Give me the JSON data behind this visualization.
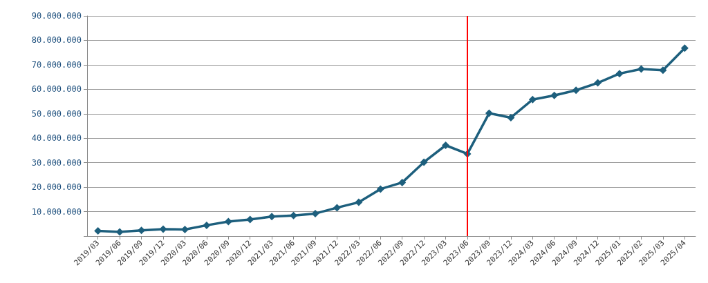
{
  "chart_data": {
    "type": "line",
    "categories": [
      "2019/03",
      "2019/06",
      "2019/09",
      "2019/12",
      "2020/03",
      "2020/06",
      "2020/09",
      "2020/12",
      "2021/03",
      "2021/06",
      "2021/09",
      "2021/12",
      "2022/03",
      "2022/06",
      "2022/09",
      "2022/12",
      "2023/03",
      "2023/06",
      "2023/09",
      "2023/12",
      "2024/03",
      "2024/06",
      "2024/09",
      "2024/12",
      "2025/01",
      "2025/02",
      "2025/03",
      "2025/04"
    ],
    "series": [
      {
        "color": "#1d5f7d",
        "values": [
          2100000,
          1700000,
          2300000,
          2800000,
          2700000,
          4400000,
          5900000,
          6800000,
          8000000,
          8400000,
          9200000,
          11600000,
          13800000,
          19200000,
          21900000,
          30200000,
          37100000,
          33600000,
          50200000,
          48400000,
          55800000,
          57500000,
          59600000,
          62600000,
          66400000,
          68300000,
          67800000,
          76800000
        ]
      }
    ],
    "ylim": [
      0,
      90000000
    ],
    "yticks": [
      {
        "value": 0,
        "label": null
      },
      {
        "value": 10000000,
        "label": "10.000.000"
      },
      {
        "value": 20000000,
        "label": "20.000.000"
      },
      {
        "value": 30000000,
        "label": "30.000.000"
      },
      {
        "value": 40000000,
        "label": "40.000.000"
      },
      {
        "value": 50000000,
        "label": "50.000.000"
      },
      {
        "value": 60000000,
        "label": "60.000.000"
      },
      {
        "value": 70000000,
        "label": "70.000.000"
      },
      {
        "value": 80000000,
        "label": "80.000.000"
      },
      {
        "value": 90000000,
        "label": "90.000.000"
      }
    ],
    "ref_lines": [
      {
        "axis": "x",
        "value": "2023/06",
        "color": "#ff0000",
        "line_style": "solid"
      }
    ],
    "grid": "y",
    "marker": "diamond",
    "line_style": "solid"
  }
}
